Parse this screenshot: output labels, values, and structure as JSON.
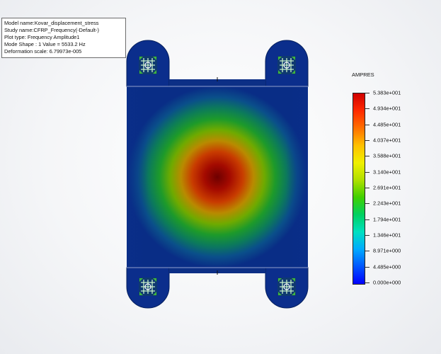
{
  "info": {
    "model_name": "Model name:Kovar_displacement_stress",
    "study_name": "Study name:CFRP_Frequency(-Default-)",
    "plot_type": "Plot type: Frequency Amplitude1",
    "mode_shape": "Mode Shape : 1  Value =        5533.2 Hz",
    "deformation_scale": "Deformation  scale: 6.79973e-005"
  },
  "legend": {
    "title": "AMPRES",
    "labels": [
      "5.383e+001",
      "4.934e+001",
      "4.485e+001",
      "4.037e+001",
      "3.588e+001",
      "3.140e+001",
      "2.691e+001",
      "2.243e+001",
      "1.794e+001",
      "1.346e+001",
      "8.971e+000",
      "4.485e+000",
      "0.000e+000"
    ],
    "colormap": [
      "#0000ff",
      "#0055ff",
      "#00aaff",
      "#00e0c0",
      "#00d060",
      "#40d000",
      "#b0e000",
      "#f0f000",
      "#ffc000",
      "#ff7000",
      "#ff2a00",
      "#d00000"
    ]
  },
  "model": {
    "plate_color_low": "#0a2e8a",
    "plate_color_high": "#7a0000",
    "fixture_icon": "fixture-arrows-icon"
  }
}
